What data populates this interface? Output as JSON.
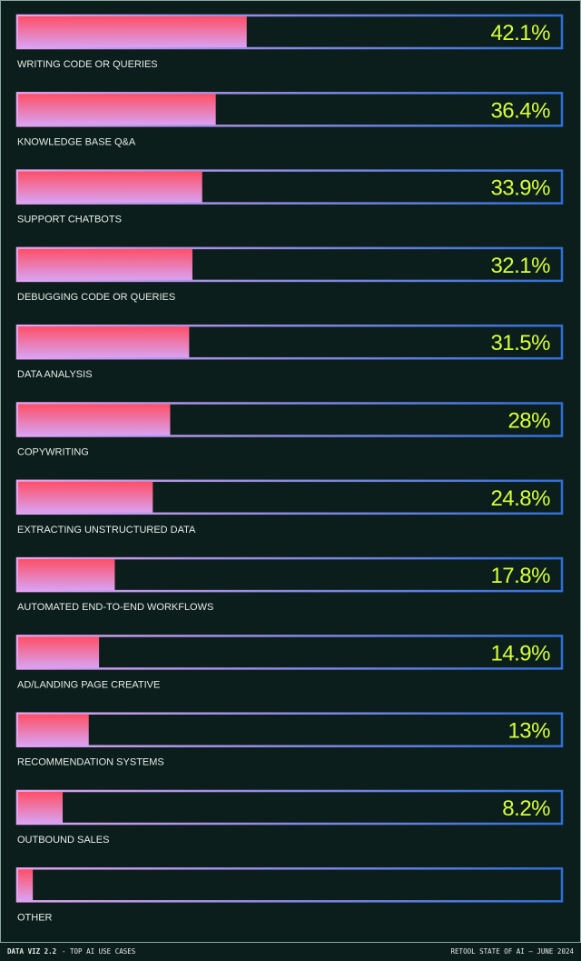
{
  "chart_data": {
    "type": "bar",
    "orientation": "horizontal",
    "categories": [
      "WRITING CODE OR QUERIES",
      "KNOWLEDGE BASE Q&A",
      "SUPPORT CHATBOTS",
      "DEBUGGING CODE OR QUERIES",
      "DATA ANALYSIS",
      "COPYWRITING",
      "EXTRACTING UNSTRUCTURED DATA",
      "AUTOMATED END-TO-END WORKFLOWS",
      "AD/LANDING PAGE CREATIVE",
      "RECOMMENDATION SYSTEMS",
      "OUTBOUND SALES",
      "OTHER"
    ],
    "values": [
      42.1,
      36.4,
      33.9,
      32.1,
      31.5,
      28,
      24.8,
      17.8,
      14.9,
      13,
      8.2,
      2.7
    ],
    "value_labels": [
      "42.1%",
      "36.4%",
      "33.9%",
      "32.1%",
      "31.5%",
      "28%",
      "24.8%",
      "17.8%",
      "14.9%",
      "13%",
      "8.2%",
      null
    ],
    "xlim": [
      0,
      100
    ],
    "colors": {
      "bar_top": "#ff4f66",
      "bar_bottom": "#d9a2f2",
      "frame_start": "#e6a3f0",
      "frame_end": "#2f6fd8",
      "label": "#d6ff3c"
    },
    "footer_id": "DATA VIZ 2.2",
    "footer_title": "- TOP AI USE CASES",
    "footer_source": "RETOOL STATE OF AI — JUNE 2024"
  }
}
